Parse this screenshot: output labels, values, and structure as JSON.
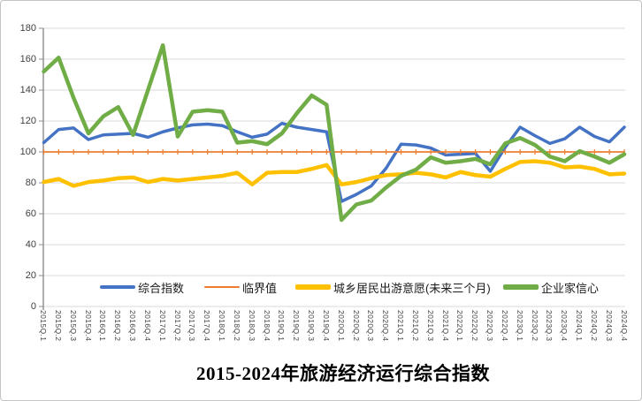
{
  "title": {
    "text": "2015-2024年旅游经济运行综合指数"
  },
  "axis": {
    "grid_color": "#d9d9d9",
    "axis_line_color": "#8c8c8c",
    "tick_label_color": "#3f3f3f"
  },
  "chart_data": {
    "type": "line",
    "title": "2015-2024年旅游经济运行综合指数",
    "xlabel": "",
    "ylabel": "",
    "ylim": [
      0,
      180
    ],
    "yticks": [
      0,
      20,
      40,
      60,
      80,
      100,
      120,
      140,
      160,
      180
    ],
    "grid": true,
    "legend_position": "bottom-inside",
    "categories": [
      "2015Q.1",
      "2015Q.2",
      "2015Q.3",
      "2015Q.4",
      "2016Q.1",
      "2016Q.2",
      "2016Q.3",
      "2016Q.4",
      "2017Q.1",
      "2017Q.2",
      "2017Q.3",
      "2017Q.4",
      "2018Q.1",
      "2018Q.2",
      "2018Q.3",
      "2018Q.4",
      "2019Q.1",
      "2019Q.2",
      "2019Q.3",
      "2019Q.4",
      "2020Q.1",
      "2020Q.2",
      "2020Q.3",
      "2020Q.4",
      "2021Q.1",
      "2021Q.2",
      "2021Q.3",
      "2021Q.4",
      "2022Q.1",
      "2022Q.2",
      "2022Q.3",
      "2022Q.4",
      "2023Q.1",
      "2023Q.2",
      "2023Q.3",
      "2023Q.4",
      "2024Q.1",
      "2024Q.2",
      "2024Q.3",
      "2024Q.4"
    ],
    "series": [
      {
        "key": "composite-index",
        "name": "综合指数",
        "color": "#4472C4",
        "width": 3.5,
        "marker": "none",
        "values": [
          106,
          114.5,
          115.5,
          108,
          111,
          111.5,
          112,
          109.5,
          113,
          115.5,
          117.5,
          118,
          117,
          113,
          109.5,
          111.5,
          118.5,
          116,
          114.5,
          113,
          68,
          72.5,
          78,
          89.5,
          105,
          104.5,
          102.5,
          98,
          98.5,
          99,
          87.5,
          103,
          116,
          110.5,
          105.5,
          108.5,
          116,
          110,
          106.5,
          116
        ]
      },
      {
        "key": "critical-value",
        "name": "临界值",
        "color": "#ED7D31",
        "width": 1.8,
        "marker": "tick",
        "values": [
          100,
          100,
          100,
          100,
          100,
          100,
          100,
          100,
          100,
          100,
          100,
          100,
          100,
          100,
          100,
          100,
          100,
          100,
          100,
          100,
          100,
          100,
          100,
          100,
          100,
          100,
          100,
          100,
          100,
          100,
          100,
          100,
          100,
          100,
          100,
          100,
          100,
          100,
          100,
          100
        ]
      },
      {
        "key": "travel-intention",
        "name": "城乡居民出游意愿(未来三个月)",
        "color": "#FFC000",
        "width": 4.5,
        "marker": "none",
        "values": [
          80.5,
          82.5,
          78,
          80.5,
          81.5,
          83,
          83.5,
          80.5,
          82.5,
          81.5,
          82.5,
          83.5,
          84.5,
          86.5,
          79,
          86.5,
          87,
          87,
          89,
          91.5,
          79,
          80.5,
          83,
          85,
          85.5,
          86.5,
          85.5,
          83.5,
          87,
          85,
          84,
          89,
          93.5,
          94,
          93,
          90,
          90.5,
          89,
          85.5,
          86
        ]
      },
      {
        "key": "entrepreneur-confidence",
        "name": "企业家信心",
        "color": "#70AD47",
        "width": 4.5,
        "marker": "none",
        "values": [
          152,
          161,
          135,
          112,
          123,
          129,
          111,
          140,
          169,
          110,
          126,
          127,
          126,
          106,
          107,
          105,
          112,
          125,
          136.5,
          130.5,
          56,
          66,
          68.5,
          77,
          84.5,
          88.5,
          96.5,
          93,
          94,
          95.5,
          92,
          105.5,
          109,
          104.5,
          97,
          94,
          100.5,
          97,
          93,
          98.5
        ]
      }
    ]
  }
}
